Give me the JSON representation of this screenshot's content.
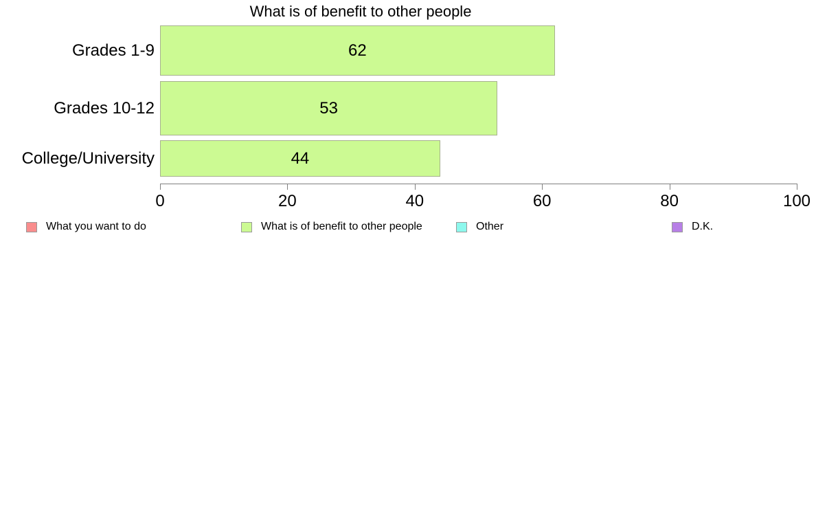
{
  "chart_data": {
    "type": "bar",
    "orientation": "horizontal",
    "title": "What is of benefit to other people",
    "categories": [
      "Grades 1-9",
      "Grades 10-12",
      "College/University"
    ],
    "values": [
      62,
      53,
      44
    ],
    "value_labels_shown": true,
    "xlabel": "",
    "ylabel": "",
    "xlim": [
      0,
      100
    ],
    "x_ticks": [
      0,
      20,
      40,
      60,
      80,
      100
    ],
    "grid": false,
    "legend_position": "bottom",
    "colors": {
      "bar_fill": "#CCFA93",
      "bar_border": "#A6B18E",
      "axis": "#7F7F7F",
      "text": "#000000",
      "background": "#FFFFFF"
    },
    "legend": [
      {
        "label": "What you want to do",
        "color": "#F98D8D"
      },
      {
        "label": "What is of benefit to other people",
        "color": "#CCFA93"
      },
      {
        "label": "Other",
        "color": "#8DF8ED"
      },
      {
        "label": "D.K.",
        "color": "#B77FE6"
      }
    ]
  }
}
